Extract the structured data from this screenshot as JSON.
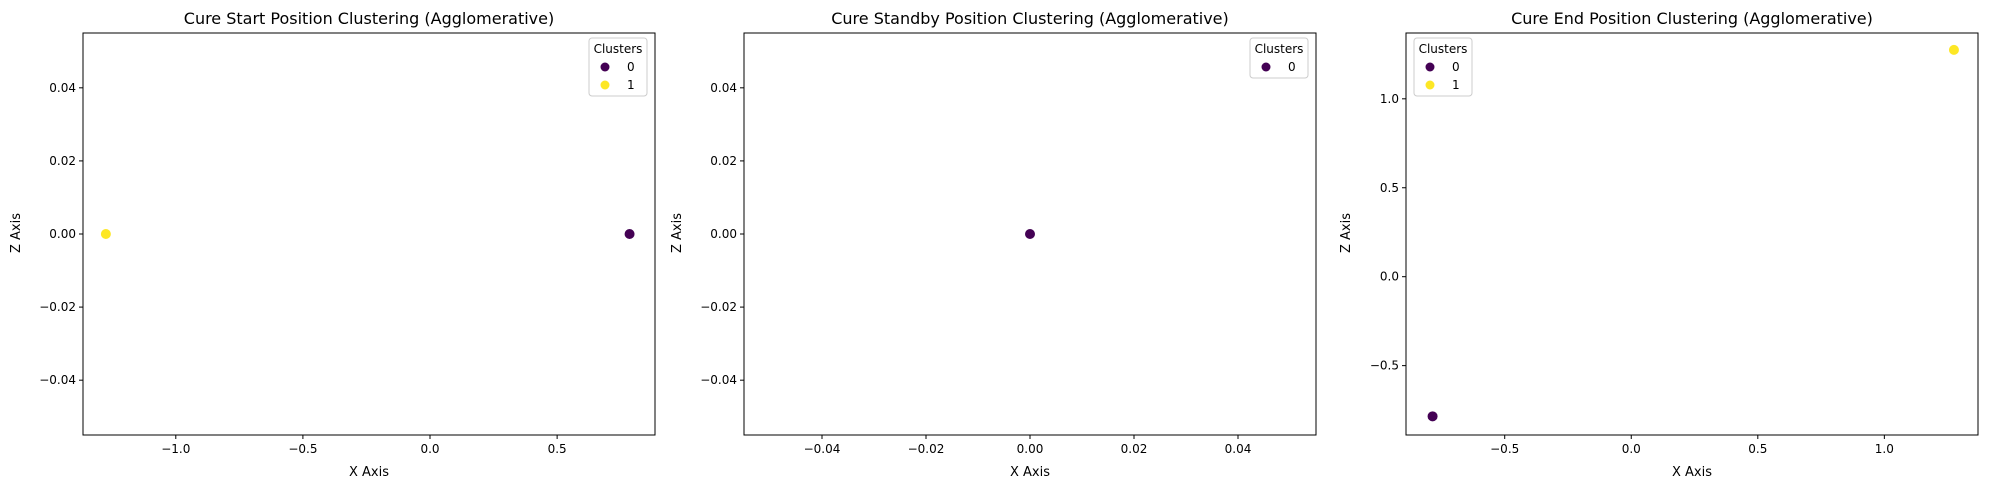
{
  "colors": {
    "cluster_0": "#440154",
    "cluster_1": "#fde725"
  },
  "chart_data": [
    {
      "type": "scatter",
      "title": "Cure Start Position Clustering (Agglomerative)",
      "xlabel": "X Axis",
      "ylabel": "Z Axis",
      "xlim": [
        -1.365,
        0.885
      ],
      "ylim": [
        -0.055,
        0.055
      ],
      "xticks": [
        -1.0,
        -0.5,
        0.0,
        0.5
      ],
      "xtick_labels": [
        "−1.0",
        "−0.5",
        "0.0",
        "0.5"
      ],
      "yticks": [
        -0.04,
        -0.02,
        0.0,
        0.02,
        0.04
      ],
      "ytick_labels": [
        "−0.04",
        "−0.02",
        "0.00",
        "0.02",
        "0.04"
      ],
      "legend": {
        "title": "Clusters",
        "placement": "upper right",
        "entries": [
          "0",
          "1"
        ]
      },
      "series": [
        {
          "name": "0",
          "cluster": 0,
          "points": [
            [
              0.785,
              0.0
            ]
          ]
        },
        {
          "name": "1",
          "cluster": 1,
          "points": [
            [
              -1.275,
              0.0
            ]
          ]
        }
      ],
      "grid": false
    },
    {
      "type": "scatter",
      "title": "Cure Standby Position Clustering (Agglomerative)",
      "xlabel": "X Axis",
      "ylabel": "Z Axis",
      "xlim": [
        -0.055,
        0.055
      ],
      "ylim": [
        -0.055,
        0.055
      ],
      "xticks": [
        -0.04,
        -0.02,
        0.0,
        0.02,
        0.04
      ],
      "xtick_labels": [
        "−0.04",
        "−0.02",
        "0.00",
        "0.02",
        "0.04"
      ],
      "yticks": [
        -0.04,
        -0.02,
        0.0,
        0.02,
        0.04
      ],
      "ytick_labels": [
        "−0.04",
        "−0.02",
        "0.00",
        "0.02",
        "0.04"
      ],
      "legend": {
        "title": "Clusters",
        "placement": "upper right",
        "entries": [
          "0"
        ]
      },
      "series": [
        {
          "name": "0",
          "cluster": 0,
          "points": [
            [
              0.0,
              0.0
            ]
          ]
        }
      ],
      "grid": false
    },
    {
      "type": "scatter",
      "title": "Cure End Position Clustering (Agglomerative)",
      "xlabel": "X Axis",
      "ylabel": "Z Axis",
      "xlim": [
        -0.89,
        1.37
      ],
      "ylim": [
        -0.89,
        1.37
      ],
      "xticks": [
        -0.5,
        0.0,
        0.5,
        1.0
      ],
      "xtick_labels": [
        "−0.5",
        "0.0",
        "0.5",
        "1.0"
      ],
      "yticks": [
        -0.5,
        0.0,
        0.5,
        1.0
      ],
      "ytick_labels": [
        "−0.5",
        "0.0",
        "0.5",
        "1.0"
      ],
      "legend": {
        "title": "Clusters",
        "placement": "upper left",
        "entries": [
          "0",
          "1"
        ]
      },
      "series": [
        {
          "name": "0",
          "cluster": 0,
          "points": [
            [
              -0.785,
              -0.785
            ]
          ]
        },
        {
          "name": "1",
          "cluster": 1,
          "points": [
            [
              1.275,
              1.275
            ]
          ]
        }
      ],
      "grid": false
    }
  ]
}
